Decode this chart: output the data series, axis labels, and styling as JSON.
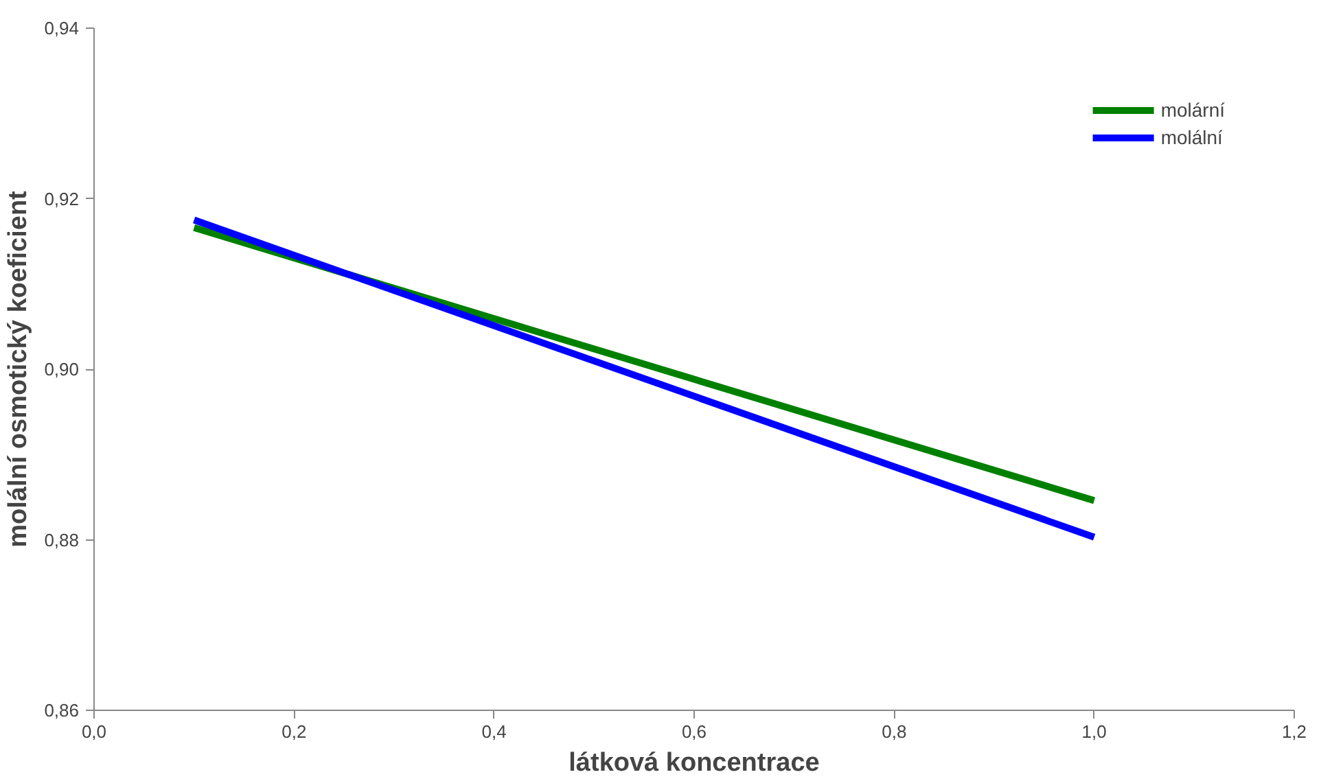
{
  "chart_data": {
    "type": "line",
    "xlabel": "látková koncentrace",
    "ylabel": "molální osmotický koeficient",
    "x": [
      0.1,
      1.0
    ],
    "series": [
      {
        "name": "molární",
        "color": "#008000",
        "values": [
          0.9166,
          0.8846
        ]
      },
      {
        "name": "molální",
        "color": "#0000ff",
        "values": [
          0.9175,
          0.8803
        ]
      }
    ],
    "xlim": [
      0,
      1.2
    ],
    "ylim": [
      0.86,
      0.94
    ],
    "xticks": [
      {
        "value": 0,
        "label": "0,0"
      },
      {
        "value": 0.2,
        "label": "0,2"
      },
      {
        "value": 0.4,
        "label": "0,4"
      },
      {
        "value": 0.6,
        "label": "0,6"
      },
      {
        "value": 0.8,
        "label": "0,8"
      },
      {
        "value": 1.0,
        "label": "1,0"
      },
      {
        "value": 1.2,
        "label": "1,2"
      }
    ],
    "yticks": [
      {
        "value": 0.86,
        "label": "0,86"
      },
      {
        "value": 0.88,
        "label": "0,88"
      },
      {
        "value": 0.9,
        "label": "0,90"
      },
      {
        "value": 0.92,
        "label": "0,92"
      },
      {
        "value": 0.94,
        "label": "0,94"
      }
    ],
    "grid": false,
    "legend": "top right",
    "marker": "none",
    "line_style": "solid"
  }
}
